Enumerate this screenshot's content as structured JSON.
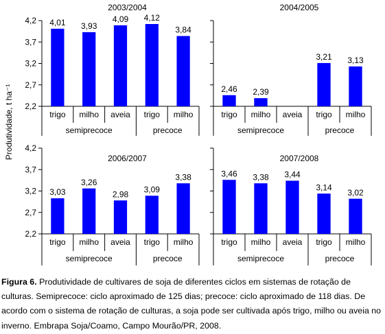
{
  "y_axis_label": "Produtividade, t ha⁻¹",
  "colors": {
    "bar": "#0000ff",
    "axis": "#000000"
  },
  "chart_data": [
    {
      "type": "bar",
      "title": "2003/2004",
      "ylim": [
        2.2,
        4.2
      ],
      "yticks": [
        "2,2",
        "2,7",
        "3,2",
        "3,7",
        "4,2"
      ],
      "ytick_values": [
        2.2,
        2.7,
        3.2,
        3.7,
        4.2
      ],
      "categories": [
        "trigo",
        "milho",
        "aveia",
        "trigo",
        "milho"
      ],
      "values": [
        4.01,
        3.93,
        4.09,
        4.12,
        3.84
      ],
      "data_labels": [
        "4,01",
        "3,93",
        "4,09",
        "4,12",
        "3,84"
      ],
      "groups": [
        {
          "name": "semiprecoce",
          "count": 3
        },
        {
          "name": "precoce",
          "count": 2
        }
      ]
    },
    {
      "type": "bar",
      "title": "2004/2005",
      "ylim": [
        2.2,
        4.2
      ],
      "categories": [
        "trigo",
        "milho",
        "aveia",
        "trigo",
        "milho"
      ],
      "values": [
        2.46,
        2.39,
        null,
        3.21,
        3.13
      ],
      "data_labels": [
        "2,46",
        "2,39",
        "",
        "3,21",
        "3,13"
      ],
      "groups": [
        {
          "name": "semiprecoce",
          "count": 3
        },
        {
          "name": "precoce",
          "count": 2
        }
      ]
    },
    {
      "type": "bar",
      "title": "2006/2007",
      "ylim": [
        2.2,
        4.2
      ],
      "yticks": [
        "2,2",
        "2,7",
        "3,2",
        "3,7",
        "4,2"
      ],
      "ytick_values": [
        2.2,
        2.7,
        3.2,
        3.7,
        4.2
      ],
      "categories": [
        "trigo",
        "milho",
        "aveia",
        "trigo",
        "milho"
      ],
      "values": [
        3.03,
        3.26,
        2.98,
        3.09,
        3.38
      ],
      "data_labels": [
        "3,03",
        "3,26",
        "2,98",
        "3,09",
        "3,38"
      ],
      "groups": [
        {
          "name": "semiprecoce",
          "count": 3
        },
        {
          "name": "precoce",
          "count": 2
        }
      ]
    },
    {
      "type": "bar",
      "title": "2007/2008",
      "ylim": [
        2.2,
        4.2
      ],
      "categories": [
        "trigo",
        "milho",
        "aveia",
        "trigo",
        "milho"
      ],
      "values": [
        3.46,
        3.38,
        3.44,
        3.14,
        3.02
      ],
      "data_labels": [
        "3,46",
        "3,38",
        "3,44",
        "3,14",
        "3,02"
      ],
      "groups": [
        {
          "name": "semiprecoce",
          "count": 3
        },
        {
          "name": "precoce",
          "count": 2
        }
      ]
    }
  ],
  "caption": {
    "label": "Figura 6.",
    "text": " Produtividade de cultivares de soja de diferentes ciclos em sistemas de rotação de culturas. Semiprecoce: ciclo aproximado de 125 dias; precoce: ciclo aproximado de 118 dias. De acordo com o sistema de rotação de culturas, a soja pode ser cultivada após trigo, milho ou aveia no inverno. Embrapa Soja/Coamo, Campo Mourão/PR, 2008."
  }
}
